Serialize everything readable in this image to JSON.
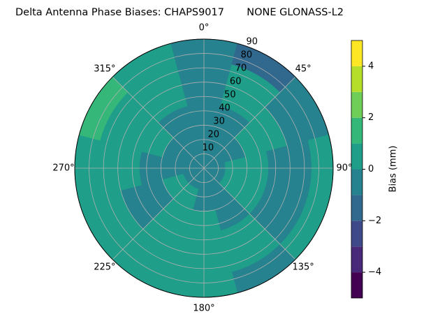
{
  "chart_data": {
    "type": "polar_contour",
    "title": "Delta Antenna Phase Biases: CHAPS9017       NONE GLONASS-L2",
    "colorbar_label": "Bias (mm)",
    "theta": [
      0,
      30,
      60,
      90,
      120,
      150,
      180,
      210,
      240,
      270,
      300,
      330
    ],
    "r_edges": [
      0,
      15,
      30,
      45,
      60,
      75,
      90
    ],
    "z": [
      [
        -0.5,
        -0.5,
        -0.5,
        -0.5,
        -0.5,
        -0.5
      ],
      [
        -0.5,
        -0.5,
        -0.5,
        0.5,
        0.5,
        -1.2
      ],
      [
        -0.5,
        -0.5,
        0.5,
        0.5,
        -0.5,
        -0.5
      ],
      [
        -0.5,
        0.5,
        0.5,
        -0.5,
        -0.5,
        0.5
      ],
      [
        -0.5,
        0.5,
        0.5,
        -0.5,
        -0.5,
        0.5
      ],
      [
        -0.5,
        -0.5,
        -0.5,
        0.5,
        0.5,
        -0.5
      ],
      [
        -0.5,
        -0.5,
        0.5,
        0.5,
        0.5,
        0.5
      ],
      [
        -0.5,
        0.5,
        0.5,
        0.5,
        0.5,
        0.5
      ],
      [
        -0.5,
        0.5,
        -0.5,
        -0.5,
        0.5,
        0.5
      ],
      [
        -0.5,
        -0.5,
        -0.5,
        0.5,
        0.5,
        0.5
      ],
      [
        -0.5,
        -0.5,
        0.5,
        0.5,
        0.5,
        1.5
      ],
      [
        -0.5,
        -0.5,
        -0.5,
        0.5,
        0.5,
        0.5
      ]
    ],
    "levels": [
      -5,
      -4,
      -3,
      -2,
      -1,
      0,
      1,
      2,
      3,
      4,
      5
    ],
    "colors": [
      "#440154",
      "#482878",
      "#3e4989",
      "#31688e",
      "#26828e",
      "#1f9e89",
      "#35b779",
      "#6ece58",
      "#b5de2b",
      "#fde725"
    ],
    "rlim": [
      0,
      90
    ],
    "rticks": [
      10,
      20,
      30,
      40,
      50,
      60,
      70,
      80,
      90
    ],
    "thetaticks": [
      {
        "value": 0,
        "label": "0°"
      },
      {
        "value": 45,
        "label": "45°"
      },
      {
        "value": 90,
        "label": "90°"
      },
      {
        "value": 135,
        "label": "135°"
      },
      {
        "value": 180,
        "label": "180°"
      },
      {
        "value": 225,
        "label": "225°"
      },
      {
        "value": 270,
        "label": "270°"
      },
      {
        "value": 315,
        "label": "315°"
      }
    ],
    "cticks": [
      {
        "value": -4,
        "label": "−4"
      },
      {
        "value": -2,
        "label": "−2"
      },
      0,
      2,
      4
    ],
    "grid": true
  }
}
